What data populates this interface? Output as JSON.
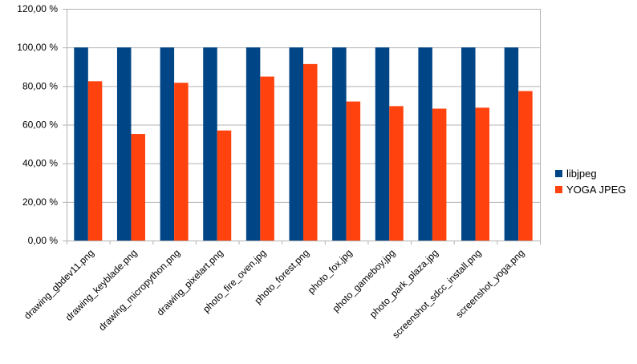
{
  "chart_data": {
    "type": "bar",
    "categories": [
      "drawing_gbdev11.png",
      "drawing_keyblade.png",
      "drawing_micropython.png",
      "drawing_pixelart.png",
      "photo_fire_oven.jpg",
      "photo_forest.png",
      "photo_fox.jpg",
      "photo_gameboy.jpg",
      "photo_park_plaza.jpg",
      "screenshot_sdcc_install.png",
      "screenshot_yoga.png"
    ],
    "series": [
      {
        "name": "libjpeg",
        "color": "#004586",
        "values": [
          100,
          100,
          100,
          100,
          100,
          100,
          100,
          100,
          100,
          100,
          100
        ]
      },
      {
        "name": "YOGA JPEG",
        "color": "#ff420e",
        "values": [
          82.5,
          55.2,
          81.7,
          57.0,
          84.9,
          91.4,
          72.0,
          69.6,
          68.3,
          68.8,
          77.4
        ]
      }
    ],
    "yticks": [
      "0,00 %",
      "20,00 %",
      "40,00 %",
      "60,00 %",
      "80,00 %",
      "100,00 %",
      "120,00 %"
    ],
    "ylim": [
      0,
      120
    ],
    "grid": true,
    "legend_position": "right"
  }
}
